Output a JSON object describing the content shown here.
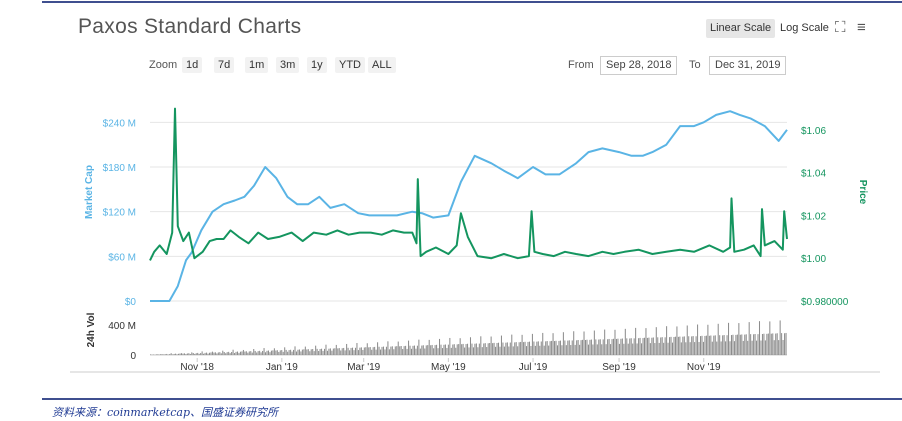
{
  "title": "Paxos Standard Charts",
  "toolbar": {
    "linear_scale": "Linear Scale",
    "log_scale": "Log Scale",
    "expand_icon": "expand-icon",
    "menu_icon": "hamburger-menu-icon"
  },
  "zoom": {
    "label": "Zoom",
    "buttons": [
      "1d",
      "7d",
      "1m",
      "3m",
      "1y",
      "YTD",
      "ALL"
    ]
  },
  "range": {
    "from_label": "From",
    "from_value": "Sep 28, 2018",
    "to_label": "To",
    "to_value": "Dec 31, 2019"
  },
  "source_text": "资料来源：coinmarketcap、国盛证券研究所",
  "colors": {
    "market_cap": "#5ab4e5",
    "price": "#14955f",
    "volume": "#8c8c8c",
    "accent_line": "#3f4f8f",
    "source_text": "#1f3a93"
  },
  "chart_data": {
    "type": "line",
    "x_type": "date",
    "x_start": "2018-09-28",
    "x_end": "2019-12-31",
    "x_ticks": [
      "Nov '18",
      "Jan '19",
      "Mar '19",
      "May '19",
      "Jul '19",
      "Sep '19",
      "Nov '19"
    ],
    "x_tick_dates": [
      "2018-11-01",
      "2019-01-01",
      "2019-03-01",
      "2019-05-01",
      "2019-07-01",
      "2019-09-01",
      "2019-11-01"
    ],
    "left_axis": {
      "label": "Market Cap",
      "ticks": [
        "$0",
        "$60 M",
        "$120 M",
        "$180 M",
        "$240 M"
      ],
      "tick_values": [
        0,
        60,
        120,
        180,
        240
      ],
      "unit": "M USD",
      "range": [
        0,
        270
      ]
    },
    "right_axis": {
      "label": "Price",
      "ticks": [
        "$0.980000",
        "$1.00",
        "$1.02",
        "$1.04",
        "$1.06"
      ],
      "tick_values": [
        0.98,
        1.0,
        1.02,
        1.04,
        1.06
      ],
      "range": [
        0.98,
        1.074
      ]
    },
    "volume_axis": {
      "label": "24h Vol",
      "ticks": [
        "0",
        "400 M"
      ],
      "tick_values": [
        0,
        400
      ],
      "range": [
        0,
        600
      ]
    },
    "series": [
      {
        "name": "Market Cap",
        "axis": "left",
        "x": [
          "2018-09-28",
          "2018-10-05",
          "2018-10-12",
          "2018-10-18",
          "2018-10-24",
          "2018-10-28",
          "2018-11-04",
          "2018-11-12",
          "2018-11-20",
          "2018-11-28",
          "2018-12-05",
          "2018-12-12",
          "2018-12-20",
          "2018-12-28",
          "2019-01-05",
          "2019-01-12",
          "2019-01-20",
          "2019-01-28",
          "2019-02-05",
          "2019-02-15",
          "2019-02-25",
          "2019-03-05",
          "2019-03-15",
          "2019-03-25",
          "2019-04-05",
          "2019-04-12",
          "2019-04-20",
          "2019-05-01",
          "2019-05-10",
          "2019-05-20",
          "2019-06-01",
          "2019-06-10",
          "2019-06-20",
          "2019-07-01",
          "2019-07-10",
          "2019-07-20",
          "2019-08-01",
          "2019-08-10",
          "2019-08-20",
          "2019-09-01",
          "2019-09-10",
          "2019-09-18",
          "2019-09-25",
          "2019-10-05",
          "2019-10-15",
          "2019-10-25",
          "2019-11-01",
          "2019-11-10",
          "2019-11-20",
          "2019-11-27",
          "2019-12-05",
          "2019-12-15",
          "2019-12-25",
          "2019-12-31"
        ],
        "values": [
          0,
          0,
          0,
          20,
          55,
          65,
          95,
          120,
          130,
          135,
          140,
          155,
          180,
          165,
          140,
          130,
          130,
          140,
          125,
          130,
          118,
          115,
          115,
          115,
          120,
          118,
          112,
          115,
          160,
          195,
          185,
          175,
          165,
          180,
          170,
          170,
          185,
          200,
          205,
          200,
          195,
          195,
          200,
          210,
          235,
          235,
          240,
          250,
          255,
          250,
          245,
          235,
          215,
          230
        ]
      },
      {
        "name": "Price",
        "axis": "right",
        "x": [
          "2018-09-28",
          "2018-10-01",
          "2018-10-05",
          "2018-10-10",
          "2018-10-14",
          "2018-10-16",
          "2018-10-18",
          "2018-10-22",
          "2018-10-26",
          "2018-10-30",
          "2018-11-05",
          "2018-11-10",
          "2018-11-15",
          "2018-11-20",
          "2018-11-25",
          "2018-12-01",
          "2018-12-08",
          "2018-12-15",
          "2018-12-22",
          "2018-12-30",
          "2019-01-08",
          "2019-01-16",
          "2019-01-24",
          "2019-02-02",
          "2019-02-10",
          "2019-02-18",
          "2019-02-26",
          "2019-03-06",
          "2019-03-14",
          "2019-03-22",
          "2019-03-30",
          "2019-04-05",
          "2019-04-08",
          "2019-04-09",
          "2019-04-11",
          "2019-04-15",
          "2019-04-22",
          "2019-05-01",
          "2019-05-07",
          "2019-05-10",
          "2019-05-15",
          "2019-05-22",
          "2019-06-01",
          "2019-06-10",
          "2019-06-20",
          "2019-06-28",
          "2019-06-30",
          "2019-07-02",
          "2019-07-08",
          "2019-07-16",
          "2019-07-24",
          "2019-08-01",
          "2019-08-10",
          "2019-08-20",
          "2019-08-28",
          "2019-09-05",
          "2019-09-15",
          "2019-09-25",
          "2019-10-05",
          "2019-10-15",
          "2019-10-25",
          "2019-11-05",
          "2019-11-15",
          "2019-11-20",
          "2019-11-21",
          "2019-11-23",
          "2019-11-30",
          "2019-12-07",
          "2019-12-12",
          "2019-12-13",
          "2019-12-15",
          "2019-12-22",
          "2019-12-28",
          "2019-12-29",
          "2019-12-31"
        ],
        "values": [
          0.999,
          1.003,
          1.006,
          1.002,
          1.012,
          1.07,
          1.015,
          1.008,
          1.012,
          1.0,
          1.003,
          1.008,
          1.009,
          1.009,
          1.013,
          1.01,
          1.007,
          1.012,
          1.009,
          1.01,
          1.012,
          1.008,
          1.012,
          1.011,
          1.013,
          1.011,
          1.012,
          1.012,
          1.011,
          1.013,
          1.012,
          1.012,
          1.007,
          1.037,
          1.001,
          1.003,
          1.005,
          1.002,
          1.006,
          1.021,
          1.01,
          1.001,
          1.0,
          1.002,
          1.0,
          1.001,
          1.022,
          1.003,
          1.002,
          1.001,
          1.003,
          1.002,
          1.001,
          1.003,
          1.002,
          1.003,
          1.004,
          1.002,
          1.003,
          1.004,
          1.003,
          1.006,
          1.003,
          1.005,
          1.028,
          1.003,
          1.004,
          1.006,
          1.001,
          1.023,
          1.006,
          1.008,
          1.004,
          1.022,
          1.009
        ]
      },
      {
        "name": "24h Vol",
        "axis": "volume",
        "type": "bar",
        "x_start": "2018-09-28",
        "x_end": "2019-12-31",
        "values": [
          5,
          5,
          6,
          5,
          8,
          10,
          6,
          8,
          9,
          12,
          10,
          14,
          9,
          12,
          15,
          11,
          14,
          18,
          13,
          16,
          20,
          15,
          18,
          22,
          17,
          20,
          24,
          19,
          22,
          26,
          20,
          24,
          28,
          22,
          26,
          30,
          24,
          28,
          32,
          26,
          30,
          34,
          28,
          32,
          36,
          30,
          34,
          38,
          32,
          36,
          40,
          34,
          38,
          42,
          36,
          40,
          44,
          38,
          42,
          46,
          40,
          44,
          48,
          42,
          46,
          50,
          44,
          48,
          52,
          46,
          50,
          54,
          48,
          52,
          56,
          50,
          54,
          58,
          52,
          56,
          60,
          54,
          58,
          62,
          56,
          60,
          64,
          58,
          62,
          66,
          60,
          64,
          68,
          62,
          66,
          70,
          64,
          68,
          72,
          66,
          70,
          74,
          68,
          72,
          76,
          70,
          74,
          78,
          72,
          76,
          80,
          74,
          78,
          82,
          76,
          80,
          84,
          78,
          82,
          86,
          80,
          84,
          88,
          82,
          86,
          90,
          84,
          88,
          92,
          86,
          90,
          94,
          88,
          92,
          96,
          90,
          94,
          98,
          92,
          96,
          100,
          94,
          98,
          102,
          96,
          100,
          104,
          98,
          102,
          106,
          100,
          104,
          108,
          102,
          106,
          110,
          104,
          108,
          112,
          106,
          110,
          114,
          108,
          112,
          116,
          110,
          114,
          118,
          112,
          116,
          120,
          114,
          118,
          122,
          116,
          120,
          124,
          118,
          122,
          126,
          120,
          124,
          128,
          122,
          126,
          130,
          124,
          128,
          132,
          126,
          130,
          134,
          128,
          132,
          136,
          130,
          134,
          138,
          132,
          136,
          140,
          134,
          138,
          142,
          136,
          140,
          144,
          138,
          142,
          146,
          140,
          144,
          148,
          142,
          146,
          150,
          144,
          148,
          152,
          146,
          150,
          154,
          148,
          152,
          156,
          150,
          154,
          158,
          152,
          156,
          160,
          154,
          158,
          162,
          156,
          160,
          164,
          158,
          162,
          166,
          160,
          164,
          168,
          162,
          166,
          170,
          164,
          168,
          172,
          166,
          170,
          174,
          168,
          172,
          176,
          170,
          174,
          178,
          172,
          176,
          180,
          174,
          178,
          182,
          176,
          180,
          184,
          178,
          182,
          186,
          180,
          184,
          188,
          182,
          186,
          190,
          184,
          188,
          192,
          186,
          190,
          194,
          188,
          192,
          196,
          190,
          194,
          198,
          192,
          196,
          200,
          194,
          198,
          202,
          196,
          200,
          204,
          198,
          202,
          206,
          200,
          204,
          208,
          202,
          206,
          210,
          204,
          208,
          212,
          206,
          210,
          214,
          208,
          212,
          216,
          210,
          214,
          218,
          212,
          216,
          220,
          214,
          218,
          222,
          216,
          220,
          224,
          218,
          222,
          226,
          220,
          224,
          228,
          222,
          226,
          230,
          224,
          228,
          232,
          226,
          230,
          234,
          228,
          232,
          236,
          230,
          234,
          238,
          232,
          236,
          240,
          234,
          238,
          242,
          236,
          240,
          244,
          238,
          242,
          246,
          240,
          244,
          248,
          242,
          246,
          250,
          244,
          248,
          252,
          246,
          250,
          254,
          248,
          252,
          256,
          250,
          254,
          258,
          252,
          256,
          260,
          254,
          258,
          262,
          256,
          260,
          264,
          258,
          262,
          266,
          260,
          264,
          268,
          262,
          266,
          270,
          264,
          268,
          272,
          266,
          270,
          274,
          268,
          272,
          276,
          270,
          274,
          278,
          272,
          276,
          280,
          274,
          278,
          282,
          276,
          280,
          284,
          278,
          282,
          286,
          280,
          284,
          288,
          282,
          286,
          290,
          284,
          288,
          292,
          286,
          290,
          294
        ]
      }
    ]
  }
}
